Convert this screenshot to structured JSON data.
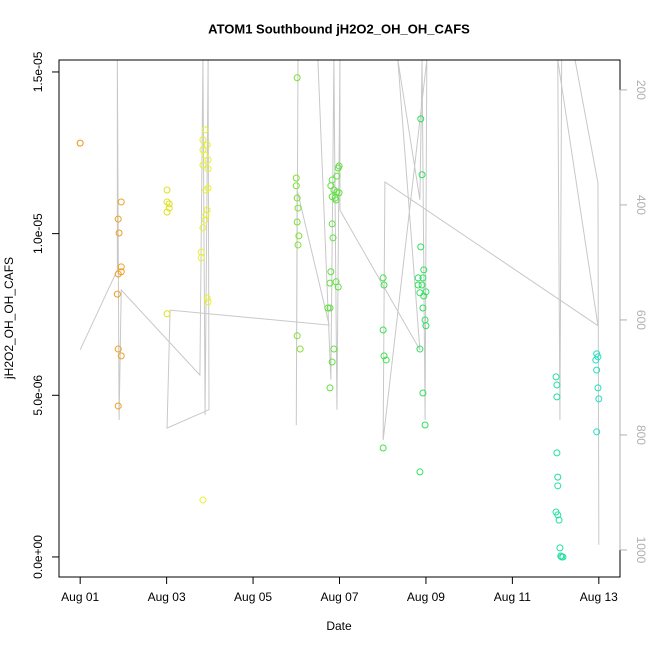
{
  "chart_data": {
    "type": "scatter",
    "title": "ATOM1 Southbound jH2O2_OH_OH_CAFS",
    "x_label": "Date",
    "y_label": "jH2O2_OH_OH_CAFS",
    "xlim": [
      0.51,
      13.49
    ],
    "xticks": [
      {
        "value": 1,
        "label": "Aug 01"
      },
      {
        "value": 3,
        "label": "Aug 03"
      },
      {
        "value": 5,
        "label": "Aug 05"
      },
      {
        "value": 7,
        "label": "Aug 07"
      },
      {
        "value": 9,
        "label": "Aug 09"
      },
      {
        "value": 11,
        "label": "Aug 11"
      },
      {
        "value": 13,
        "label": "Aug 13"
      }
    ],
    "ylim": [
      -6.2e-07,
      1.537e-05
    ],
    "yticks": [
      {
        "value": 0,
        "label": "0.0e+00"
      },
      {
        "value": 5e-06,
        "label": "5.0e-06"
      },
      {
        "value": 1e-05,
        "label": "1.0e-05"
      },
      {
        "value": 1.5e-05,
        "label": "1.5e-05"
      }
    ],
    "y2lim": [
      1047,
      148
    ],
    "y2ticks": [
      200,
      400,
      600,
      800,
      1000
    ],
    "series": [
      {
        "color": "#f0901a",
        "x": [
          1.0
        ],
        "values": [
          1.28e-05
        ]
      },
      {
        "color": "#eda020",
        "x": [
          1.95,
          1.88,
          1.9,
          1.95,
          1.95,
          1.88,
          1.86,
          1.88,
          1.95,
          1.88
        ],
        "values": [
          1.098e-05,
          1.045e-05,
          1.002e-05,
          8.97e-06,
          8.82e-06,
          8.75e-06,
          8.13e-06,
          6.43e-06,
          6.22e-06,
          4.67e-06
        ]
      },
      {
        "color": "#e0e020",
        "x": [
          3.01,
          3.01,
          3.06,
          3.06,
          3.01,
          3.01
        ],
        "values": [
          1.135e-05,
          1.098e-05,
          1.092e-05,
          1.079e-05,
          1.067e-05,
          7.52e-06
        ]
      },
      {
        "color": "#e8f030",
        "x": [
          3.89,
          3.84,
          3.94,
          3.84,
          3.89,
          3.96,
          3.84,
          3.96,
          3.91,
          3.96,
          3.94,
          3.91,
          3.89,
          3.84,
          3.8,
          3.8,
          3.94,
          3.96,
          3.84
        ],
        "values": [
          1.321e-05,
          1.29e-05,
          1.274e-05,
          1.259e-05,
          1.243e-05,
          1.228e-05,
          1.212e-05,
          1.2e-05,
          1.135e-05,
          1.141e-05,
          1.073e-05,
          1.058e-05,
          1.042e-05,
          1.018e-05,
          9.43e-06,
          9.25e-06,
          8.01e-06,
          7.89e-06,
          1.76e-06
        ]
      },
      {
        "color": "#80e030",
        "x": [
          6.02,
          6.0,
          6.0,
          6.02,
          6.04,
          6.02,
          6.06,
          6.04,
          6.02,
          6.09
        ],
        "values": [
          1.482e-05,
          1.172e-05,
          1.148e-05,
          1.11e-05,
          1.079e-05,
          1.036e-05,
          9.93e-06,
          9.65e-06,
          6.84e-06,
          6.43e-06
        ]
      },
      {
        "color": "#60e040",
        "x": [
          6.83,
          6.8,
          6.97,
          6.87,
          6.94,
          6.99,
          6.83,
          6.9,
          6.94,
          6.99,
          6.92,
          6.83,
          6.85,
          6.8,
          6.78,
          6.73,
          6.78,
          6.92,
          6.97,
          6.87,
          6.83,
          6.78
        ],
        "values": [
          1.166e-05,
          1.148e-05,
          1.203e-05,
          1.135e-05,
          1.129e-05,
          1.126e-05,
          1.114e-05,
          1.11e-05,
          1.178e-05,
          1.209e-05,
          1.104e-05,
          1.03e-05,
          9.87e-06,
          8.82e-06,
          8.47e-06,
          7.7e-06,
          7.7e-06,
          8.51e-06,
          8.35e-06,
          6.43e-06,
          6.03e-06,
          5.23e-06
        ]
      },
      {
        "color": "#40e050",
        "x": [
          8.01,
          8.03,
          8.01,
          8.03,
          8.08,
          8.01
        ],
        "values": [
          8.63e-06,
          8.41e-06,
          7.02e-06,
          6.22e-06,
          6.09e-06,
          3.37e-06
        ]
      },
      {
        "color": "#30e060",
        "x": [
          8.88,
          8.91,
          8.88,
          8.95,
          8.93,
          8.82,
          8.91,
          8.82,
          9.0,
          8.86,
          8.95,
          8.93,
          8.98,
          9.0,
          8.86,
          8.93,
          8.98,
          8.86
        ],
        "values": [
          1.355e-05,
          1.182e-05,
          9.59e-06,
          8.88e-06,
          8.63e-06,
          8.63e-06,
          8.41e-06,
          8.41e-06,
          8.2e-06,
          8.17e-06,
          8.07e-06,
          7.7e-06,
          7.33e-06,
          7.15e-06,
          6.43e-06,
          5.07e-06,
          4.08e-06,
          2.63e-06
        ]
      },
      {
        "color": "#20e0a0",
        "x": [
          12.01,
          12.03,
          12.03,
          12.03,
          12.05,
          12.05,
          12.01,
          12.05,
          12.08,
          12.1,
          12.12,
          12.14,
          12.17
        ],
        "values": [
          5.57e-06,
          5.32e-06,
          4.95e-06,
          3.22e-06,
          2.47e-06,
          2.2e-06,
          1.39e-06,
          1.3e-06,
          1.14e-06,
          2.8e-07,
          3e-08,
          0,
          0
        ]
      },
      {
        "color": "#20e0c0",
        "x": [
          12.95,
          12.98,
          12.93,
          12.95,
          12.98,
          13.0,
          12.95
        ],
        "values": [
          6.28e-06,
          6.19e-06,
          6.09e-06,
          5.78e-06,
          5.23e-06,
          4.89e-06,
          3.87e-06
        ]
      },
      {
        "type": "line",
        "axis": "y2",
        "color": "#c8c8c8",
        "x": [
          1.0,
          1.86,
          1.86,
          1.9,
          1.95,
          3.77,
          3.84,
          3.89,
          3.96,
          3.98,
          3.01,
          3.08,
          6.76,
          6.02,
          6.0,
          6.04,
          6.5,
          6.8,
          6.87,
          6.94,
          7.01,
          7.01,
          8.86,
          8.35,
          8.86,
          8.91,
          8.98,
          9.02,
          8.01,
          8.05,
          12.98,
          12.05,
          12.1,
          12.14,
          12.45,
          12.98,
          13.0
        ],
        "values": [
          652,
          513,
          148,
          774,
          548,
          696,
          148,
          765,
          148,
          756,
          788,
          583,
          609,
          374,
          783,
          148,
          148,
          704,
          148,
          756,
          148,
          409,
          652,
          148,
          391,
          148,
          774,
          148,
          809,
          360,
          610,
          148,
          774,
          148,
          148,
          362,
          991
        ]
      }
    ]
  }
}
